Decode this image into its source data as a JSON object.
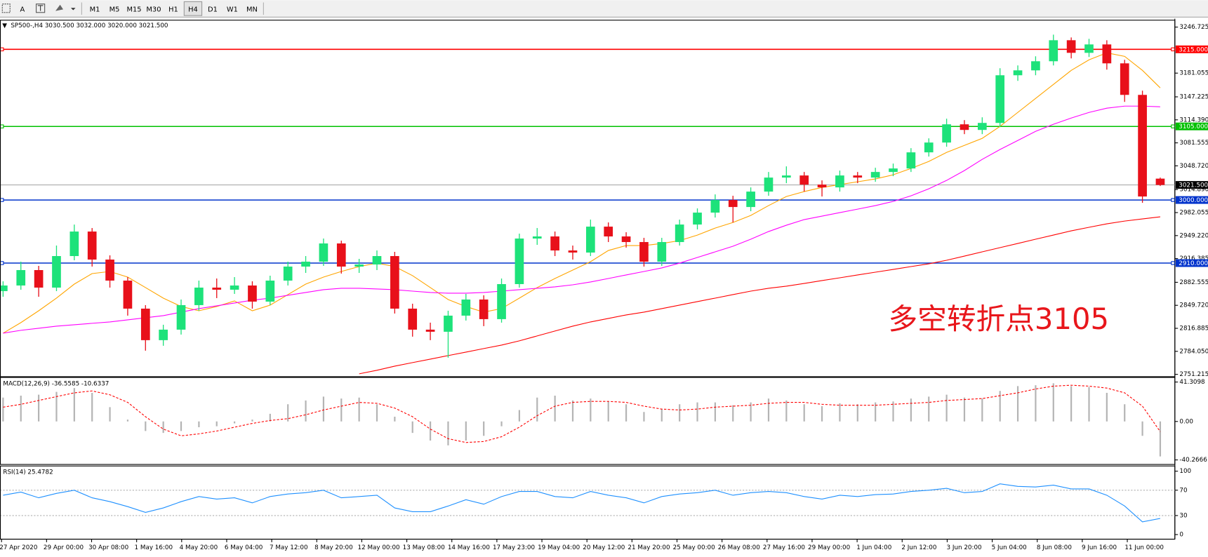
{
  "toolbar": {
    "buttons": [
      "A"
    ],
    "timeframes": [
      "M1",
      "M5",
      "M15",
      "M30",
      "H1",
      "H4",
      "D1",
      "W1",
      "MN"
    ],
    "active": "H4"
  },
  "chart_data": [
    {
      "type": "candlestick",
      "title": "SP500-,H4 3030.500 3032.000 3020.000 3021.500",
      "up_color": "#1de27a",
      "down_color": "#e8101a",
      "candles": [
        [
          2870,
          2884,
          2862,
          2878
        ],
        [
          2878,
          2912,
          2872,
          2900
        ],
        [
          2900,
          2906,
          2862,
          2875
        ],
        [
          2875,
          2935,
          2870,
          2920
        ],
        [
          2920,
          2965,
          2914,
          2955
        ],
        [
          2955,
          2960,
          2905,
          2915
        ],
        [
          2915,
          2921,
          2875,
          2885
        ],
        [
          2885,
          2890,
          2835,
          2845
        ],
        [
          2845,
          2850,
          2785,
          2800
        ],
        [
          2800,
          2822,
          2792,
          2815
        ],
        [
          2815,
          2858,
          2808,
          2850
        ],
        [
          2850,
          2885,
          2842,
          2875
        ],
        [
          2875,
          2888,
          2860,
          2872
        ],
        [
          2872,
          2890,
          2866,
          2878
        ],
        [
          2878,
          2884,
          2845,
          2855
        ],
        [
          2855,
          2892,
          2850,
          2885
        ],
        [
          2885,
          2912,
          2878,
          2905
        ],
        [
          2905,
          2920,
          2896,
          2912
        ],
        [
          2912,
          2945,
          2906,
          2938
        ],
        [
          2938,
          2942,
          2895,
          2905
        ],
        [
          2905,
          2916,
          2896,
          2908
        ],
        [
          2908,
          2928,
          2900,
          2920
        ],
        [
          2920,
          2926,
          2838,
          2845
        ],
        [
          2845,
          2852,
          2805,
          2815
        ],
        [
          2815,
          2825,
          2800,
          2812
        ],
        [
          2812,
          2842,
          2775,
          2835
        ],
        [
          2835,
          2866,
          2828,
          2858
        ],
        [
          2858,
          2864,
          2820,
          2830
        ],
        [
          2830,
          2888,
          2825,
          2880
        ],
        [
          2880,
          2952,
          2875,
          2945
        ],
        [
          2945,
          2960,
          2936,
          2948
        ],
        [
          2948,
          2955,
          2920,
          2928
        ],
        [
          2928,
          2935,
          2915,
          2925
        ],
        [
          2925,
          2972,
          2920,
          2962
        ],
        [
          2962,
          2968,
          2940,
          2948
        ],
        [
          2948,
          2954,
          2932,
          2940
        ],
        [
          2940,
          2946,
          2905,
          2912
        ],
        [
          2912,
          2946,
          2906,
          2940
        ],
        [
          2940,
          2972,
          2935,
          2965
        ],
        [
          2965,
          2988,
          2958,
          2982
        ],
        [
          2982,
          3008,
          2975,
          3000
        ],
        [
          3000,
          3006,
          2968,
          2990
        ],
        [
          2990,
          3018,
          2984,
          3012
        ],
        [
          3012,
          3040,
          3006,
          3032
        ],
        [
          3032,
          3048,
          3024,
          3035
        ],
        [
          3035,
          3040,
          3012,
          3022
        ],
        [
          3022,
          3028,
          3005,
          3018
        ],
        [
          3018,
          3042,
          3012,
          3035
        ],
        [
          3035,
          3040,
          3024,
          3032
        ],
        [
          3032,
          3046,
          3026,
          3040
        ],
        [
          3040,
          3052,
          3034,
          3045
        ],
        [
          3045,
          3074,
          3040,
          3068
        ],
        [
          3068,
          3088,
          3062,
          3082
        ],
        [
          3082,
          3116,
          3076,
          3108
        ],
        [
          3108,
          3114,
          3094,
          3100
        ],
        [
          3100,
          3118,
          3094,
          3110
        ],
        [
          3110,
          3188,
          3104,
          3178
        ],
        [
          3178,
          3192,
          3170,
          3185
        ],
        [
          3185,
          3205,
          3178,
          3198
        ],
        [
          3198,
          3236,
          3192,
          3228
        ],
        [
          3228,
          3232,
          3202,
          3210
        ],
        [
          3210,
          3230,
          3204,
          3222
        ],
        [
          3222,
          3228,
          3186,
          3195
        ],
        [
          3195,
          3200,
          3140,
          3150
        ],
        [
          3150,
          3156,
          2996,
          3005
        ],
        [
          3030.5,
          3032,
          3020,
          3021.5
        ]
      ],
      "series": [
        {
          "color": "#ffa500",
          "values": [
            2810,
            2825,
            2842,
            2860,
            2880,
            2895,
            2898,
            2890,
            2875,
            2860,
            2848,
            2842,
            2848,
            2856,
            2842,
            2850,
            2865,
            2880,
            2890,
            2898,
            2905,
            2910,
            2905,
            2892,
            2875,
            2858,
            2848,
            2840,
            2845,
            2860,
            2875,
            2888,
            2900,
            2912,
            2928,
            2935,
            2935,
            2938,
            2942,
            2950,
            2960,
            2968,
            2978,
            2992,
            3005,
            3012,
            3018,
            3022,
            3026,
            3030,
            3036,
            3045,
            3055,
            3068,
            3078,
            3088,
            3105,
            3125,
            3145,
            3165,
            3185,
            3200,
            3210,
            3205,
            3185,
            3160
          ]
        },
        {
          "color": "#ff00ff",
          "values": [
            2810,
            2814,
            2817,
            2820,
            2822,
            2824,
            2826,
            2829,
            2832,
            2835,
            2840,
            2845,
            2849,
            2853,
            2857,
            2860,
            2864,
            2868,
            2872,
            2874,
            2874,
            2873,
            2872,
            2870,
            2868,
            2867,
            2867,
            2868,
            2870,
            2872,
            2874,
            2876,
            2879,
            2883,
            2888,
            2893,
            2898,
            2903,
            2910,
            2918,
            2926,
            2934,
            2944,
            2955,
            2964,
            2972,
            2977,
            2982,
            2987,
            2992,
            2998,
            3006,
            3016,
            3028,
            3042,
            3058,
            3072,
            3085,
            3098,
            3108,
            3117,
            3125,
            3131,
            3134,
            3134,
            3133
          ]
        },
        {
          "color": "#ff0000",
          "values": [
            null,
            null,
            null,
            null,
            null,
            null,
            null,
            null,
            null,
            null,
            null,
            null,
            null,
            null,
            null,
            null,
            null,
            null,
            null,
            null,
            2752,
            2757,
            2763,
            2768,
            2773,
            2778,
            2783,
            2788,
            2793,
            2799,
            2806,
            2813,
            2820,
            2826,
            2831,
            2836,
            2840,
            2845,
            2850,
            2855,
            2860,
            2865,
            2870,
            2874,
            2877,
            2881,
            2885,
            2889,
            2893,
            2897,
            2901,
            2905,
            2909,
            2914,
            2920,
            2926,
            2932,
            2938,
            2944,
            2950,
            2956,
            2961,
            2966,
            2970,
            2973,
            2976
          ]
        }
      ],
      "levels": [
        {
          "value": 3215,
          "label": "3215.000",
          "color": "#ff0000"
        },
        {
          "value": 3105,
          "label": "3105.000",
          "color": "#00c000"
        },
        {
          "value": 3021.5,
          "label": "3021.500",
          "color": "#000000"
        },
        {
          "value": 3000,
          "label": "3000.000",
          "color": "#0033cc"
        },
        {
          "value": 2910,
          "label": "2910.000",
          "color": "#0033cc"
        }
      ],
      "ylim": [
        2749,
        3255.5
      ],
      "yticks": [
        3246.725,
        3181.055,
        3147.225,
        {
          "value": 3114.39,
          "label": "3114.390"
        },
        3081.555,
        {
          "value": 3048.72,
          "label": "3048.720"
        },
        {
          "value": 3014.89,
          "label": "3014.890"
        },
        2982.055,
        {
          "value": 2949.22,
          "label": "2949.220"
        },
        2916.385,
        2882.555,
        {
          "value": 2849.72,
          "label": "2849.720"
        },
        2816.885,
        {
          "value": 2784.05,
          "label": "2784.050"
        },
        2751.215
      ],
      "annotation": "多空转折点3105",
      "annotation_color": "#e8161b",
      "x_labels": [
        "27 Apr 2020",
        "29 Apr 00:00",
        "30 Apr 08:00",
        "1 May 16:00",
        "4 May 20:00",
        "6 May 04:00",
        "7 May 12:00",
        "8 May 20:00",
        "12 May 00:00",
        "13 May 08:00",
        "14 May 16:00",
        "17 May 23:00",
        "19 May 04:00",
        "20 May 12:00",
        "21 May 20:00",
        "25 May 00:00",
        "26 May 08:00",
        "27 May 16:00",
        "29 May 00:00",
        "1 Jun 04:00",
        "2 Jun 12:00",
        "3 Jun 20:00",
        "5 Jun 04:00",
        "8 Jun 08:00",
        "9 Jun 16:00",
        "11 Jun 00:00"
      ]
    },
    {
      "type": "macd",
      "title": "MACD(12,26,9) -36.5585 -10.6337",
      "histogram_color": "#b4b4b4",
      "signal_color": "#ff0000",
      "histogram": [
        25,
        27,
        28,
        31,
        35,
        30,
        15,
        2,
        -10,
        -12,
        -10,
        -6,
        -5,
        -2,
        2,
        8,
        18,
        22,
        26,
        24,
        25,
        18,
        5,
        -12,
        -20,
        -25,
        -20,
        -15,
        -5,
        12,
        25,
        27,
        22,
        24,
        21,
        18,
        10,
        13,
        18,
        20,
        20,
        17,
        20,
        24,
        22,
        18,
        16,
        19,
        18,
        20,
        21,
        24,
        26,
        28,
        25,
        24,
        32,
        37,
        38,
        40,
        37,
        36,
        30,
        18,
        -15,
        -36.5585
      ],
      "signal": [
        15,
        18,
        22,
        26,
        30,
        32,
        28,
        20,
        5,
        -8,
        -15,
        -13,
        -10,
        -6,
        -2,
        1,
        3,
        7,
        12,
        16,
        20,
        19,
        14,
        5,
        -8,
        -18,
        -22,
        -21,
        -16,
        -6,
        6,
        16,
        20,
        21,
        21,
        20,
        16,
        13,
        12,
        13,
        15,
        16,
        17,
        19,
        20,
        20,
        18,
        17,
        17,
        17,
        18,
        19,
        20,
        22,
        23,
        24,
        27,
        30,
        34,
        37,
        38,
        37,
        35,
        30,
        16,
        -10.6337
      ],
      "ylim": [
        -44.2,
        45.3
      ],
      "yticks": [
        41.3098,
        {
          "value": 0,
          "label": "0.00"
        },
        -40.2666
      ]
    },
    {
      "type": "rsi",
      "title": "RSI(14) 25.4782",
      "color": "#1e90ff",
      "values": [
        62,
        67,
        58,
        65,
        70,
        58,
        52,
        44,
        35,
        42,
        52,
        60,
        56,
        58,
        50,
        60,
        64,
        66,
        70,
        58,
        60,
        62,
        42,
        36,
        36,
        45,
        55,
        48,
        60,
        68,
        68,
        60,
        58,
        68,
        62,
        58,
        50,
        60,
        64,
        66,
        70,
        62,
        66,
        68,
        66,
        60,
        56,
        62,
        60,
        63,
        64,
        68,
        70,
        73,
        66,
        68,
        80,
        76,
        75,
        78,
        72,
        72,
        62,
        45,
        20,
        25.4782
      ],
      "ylim": [
        -6,
        107
      ],
      "yticks": [
        100,
        70,
        30,
        0
      ],
      "levels": [
        70,
        30
      ]
    }
  ]
}
